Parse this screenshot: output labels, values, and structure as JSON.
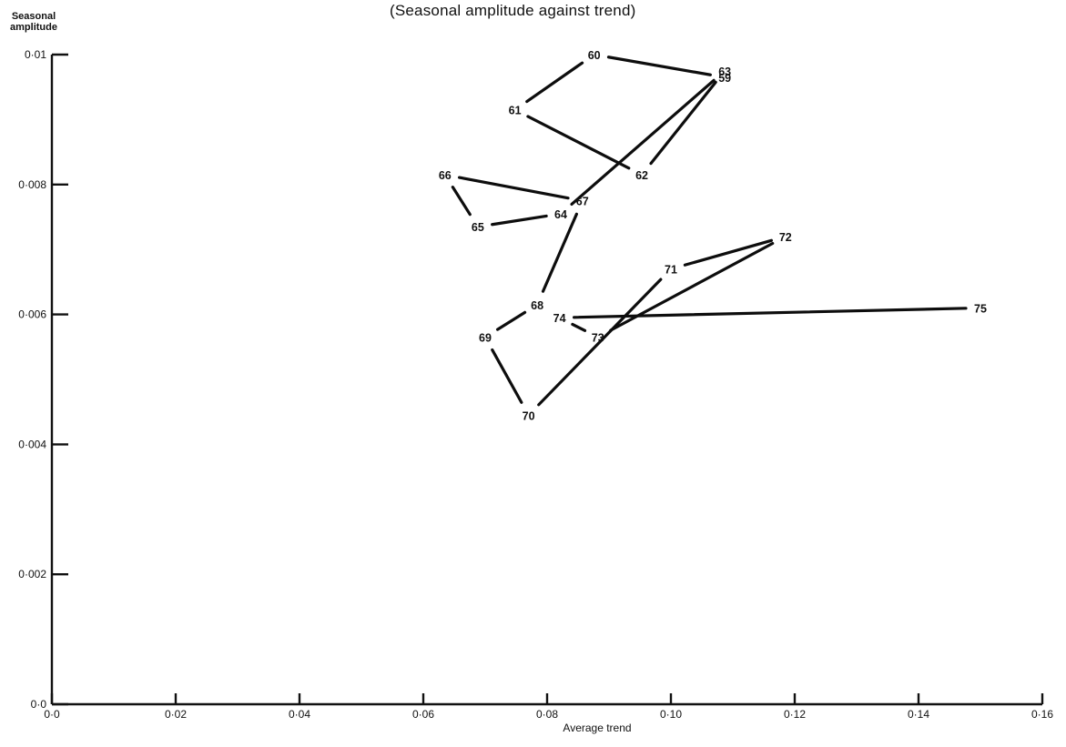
{
  "chart_data": {
    "type": "line",
    "title": "(Seasonal amplitude against trend)",
    "xlabel": "Average trend",
    "ylabel": [
      "Seasonal",
      "amplitude"
    ],
    "xlim": [
      0,
      0.16
    ],
    "ylim": [
      0,
      0.01
    ],
    "x_ticks": [
      0,
      0.02,
      0.04,
      0.06,
      0.08,
      0.1,
      0.12,
      0.14,
      0.16
    ],
    "x_tick_labels": [
      "0·0",
      "0·02",
      "0·04",
      "0·06",
      "0·08",
      "0·10",
      "0·12",
      "0·14",
      "0·16"
    ],
    "y_ticks": [
      0,
      0.002,
      0.004,
      0.006,
      0.008,
      0.01
    ],
    "y_tick_labels": [
      "0·0",
      "0·002",
      "0·004",
      "0·006",
      "0·008",
      "0·01"
    ],
    "points": [
      {
        "label": "59",
        "x": 0.1087,
        "y": 0.00965
      },
      {
        "label": "60",
        "x": 0.0876,
        "y": 0.01
      },
      {
        "label": "61",
        "x": 0.0748,
        "y": 0.00915
      },
      {
        "label": "62",
        "x": 0.0953,
        "y": 0.00815
      },
      {
        "label": "63",
        "x": 0.1087,
        "y": 0.00975
      },
      {
        "label": "64",
        "x": 0.0822,
        "y": 0.00755
      },
      {
        "label": "65",
        "x": 0.0688,
        "y": 0.00735
      },
      {
        "label": "66",
        "x": 0.0635,
        "y": 0.00815
      },
      {
        "label": "67",
        "x": 0.0857,
        "y": 0.00775
      },
      {
        "label": "68",
        "x": 0.0784,
        "y": 0.00615
      },
      {
        "label": "69",
        "x": 0.07,
        "y": 0.00565
      },
      {
        "label": "70",
        "x": 0.077,
        "y": 0.00445
      },
      {
        "label": "71",
        "x": 0.1,
        "y": 0.0067
      },
      {
        "label": "72",
        "x": 0.1185,
        "y": 0.0072
      },
      {
        "label": "73",
        "x": 0.0882,
        "y": 0.00565
      },
      {
        "label": "74",
        "x": 0.082,
        "y": 0.00595
      },
      {
        "label": "75",
        "x": 0.15,
        "y": 0.0061
      }
    ],
    "path_order": [
      "59",
      "60",
      "61",
      "62",
      "63",
      "64",
      "65",
      "66",
      "67",
      "68",
      "69",
      "70",
      "71",
      "72",
      "73",
      "74",
      "75"
    ],
    "grid": false,
    "legend": "none"
  }
}
